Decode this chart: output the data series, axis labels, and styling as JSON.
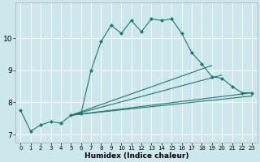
{
  "xlabel": "Humidex (Indice chaleur)",
  "bg_color": "#cce8ec",
  "grid_color": "#ffffff",
  "line_color": "#1a7a6e",
  "xlim": [
    -0.5,
    23.5
  ],
  "ylim": [
    6.75,
    11.1
  ],
  "yticks": [
    7,
    8,
    9,
    10
  ],
  "xticks": [
    0,
    1,
    2,
    3,
    4,
    5,
    6,
    7,
    8,
    9,
    10,
    11,
    12,
    13,
    14,
    15,
    16,
    17,
    18,
    19,
    20,
    21,
    22,
    23
  ],
  "line1_x": [
    0,
    1,
    2,
    3,
    4,
    5,
    6,
    7,
    8,
    9,
    10,
    11,
    12,
    13,
    14,
    15,
    16,
    17,
    18,
    19,
    20,
    21,
    22,
    23
  ],
  "line1_y": [
    7.75,
    7.1,
    7.3,
    7.4,
    7.35,
    7.6,
    7.65,
    9.0,
    9.9,
    10.4,
    10.15,
    10.55,
    10.2,
    10.6,
    10.55,
    10.6,
    10.15,
    9.55,
    9.2,
    8.8,
    8.75,
    8.5,
    8.3,
    8.3
  ],
  "line2_x": [
    5,
    23
  ],
  "line2_y": [
    7.6,
    8.3
  ],
  "line3_x": [
    5,
    23
  ],
  "line3_y": [
    7.6,
    8.2
  ],
  "line4_x": [
    5,
    20
  ],
  "line4_y": [
    7.6,
    8.85
  ],
  "line5_x": [
    5,
    19
  ],
  "line5_y": [
    7.6,
    9.15
  ]
}
